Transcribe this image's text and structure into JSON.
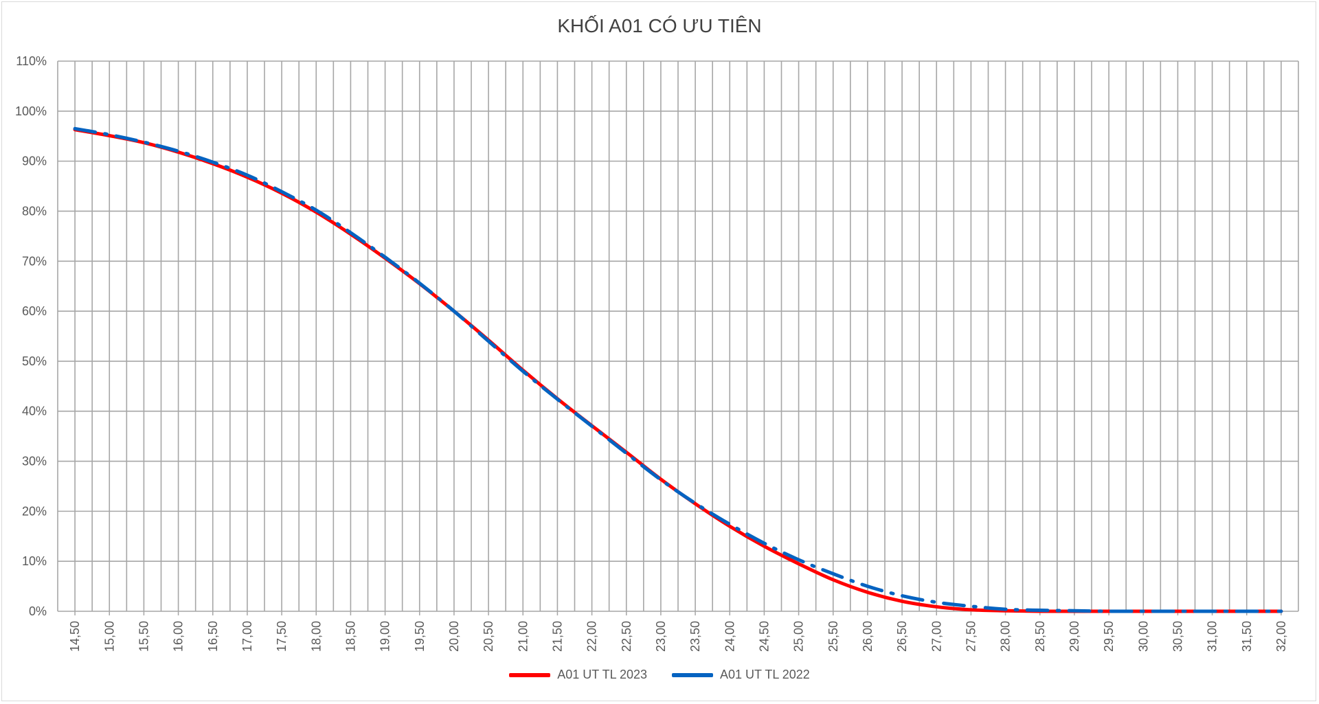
{
  "chart_data": {
    "type": "line",
    "title": "KHỐI A01 CÓ ƯU TIÊN",
    "xlabel": "",
    "ylabel": "",
    "x_ticks": [
      "14,50",
      "15,00",
      "15,50",
      "16,00",
      "16,50",
      "17,00",
      "17,50",
      "18,00",
      "18,50",
      "19,00",
      "19,50",
      "20,00",
      "20,50",
      "21,00",
      "21,50",
      "22,00",
      "22,50",
      "23,00",
      "23,50",
      "24,00",
      "24,50",
      "25,00",
      "25,50",
      "26,00",
      "26,50",
      "27,00",
      "27,50",
      "28,00",
      "28,50",
      "29,00",
      "29,50",
      "30,00",
      "30,50",
      "31,00",
      "31,50",
      "32,00"
    ],
    "y_ticks": [
      "0%",
      "10%",
      "20%",
      "30%",
      "40%",
      "50%",
      "60%",
      "70%",
      "80%",
      "90%",
      "100%",
      "110%"
    ],
    "xlim": [
      14.25,
      32.25
    ],
    "ylim": [
      0,
      1.1
    ],
    "grid": true,
    "legend": "bottom",
    "series": [
      {
        "name": "A01 UT TL 2023",
        "color": "#ff0000",
        "style": "solid",
        "x": [
          14.5,
          15.0,
          15.5,
          16.0,
          16.5,
          17.0,
          17.5,
          18.0,
          18.5,
          19.0,
          19.5,
          20.0,
          20.5,
          21.0,
          21.5,
          22.0,
          22.5,
          23.0,
          23.5,
          24.0,
          24.5,
          25.0,
          25.5,
          26.0,
          26.5,
          27.0,
          27.5,
          28.0,
          28.5,
          29.0,
          29.5,
          30.0,
          30.5,
          31.0,
          31.5,
          32.0
        ],
        "values": [
          0.963,
          0.951,
          0.937,
          0.918,
          0.895,
          0.868,
          0.836,
          0.798,
          0.754,
          0.706,
          0.655,
          0.6,
          0.542,
          0.482,
          0.425,
          0.371,
          0.318,
          0.264,
          0.215,
          0.17,
          0.13,
          0.095,
          0.063,
          0.038,
          0.02,
          0.009,
          0.003,
          0.001,
          0.0,
          0.0,
          0.0,
          0.0,
          0.0,
          0.0,
          0.0,
          0.0
        ]
      },
      {
        "name": "A01 UT TL 2022",
        "color": "#0563c1",
        "style": "dashdot",
        "x": [
          14.5,
          15.0,
          15.5,
          16.0,
          16.5,
          17.0,
          17.5,
          18.0,
          18.5,
          19.0,
          19.5,
          20.0,
          20.5,
          21.0,
          21.5,
          22.0,
          22.5,
          23.0,
          23.5,
          24.0,
          24.5,
          25.0,
          25.5,
          26.0,
          26.5,
          27.0,
          27.5,
          28.0,
          28.5,
          29.0,
          29.5,
          30.0,
          30.5,
          31.0,
          31.5,
          32.0
        ],
        "values": [
          0.965,
          0.953,
          0.938,
          0.92,
          0.898,
          0.872,
          0.839,
          0.802,
          0.757,
          0.708,
          0.656,
          0.6,
          0.54,
          0.48,
          0.424,
          0.37,
          0.316,
          0.263,
          0.216,
          0.174,
          0.136,
          0.103,
          0.075,
          0.05,
          0.031,
          0.018,
          0.01,
          0.004,
          0.002,
          0.001,
          0.0,
          0.0,
          0.0,
          0.0,
          0.0,
          0.0
        ]
      }
    ]
  }
}
